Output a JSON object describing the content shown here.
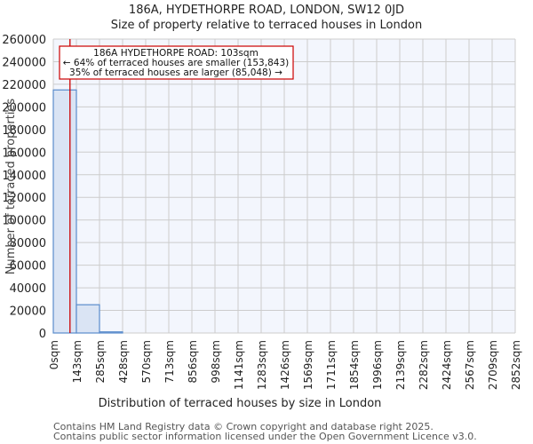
{
  "header": {
    "title": "186A, HYDETHORPE ROAD, LONDON, SW12 0JD",
    "subtitle": "Size of property relative to terraced houses in London"
  },
  "annotation": {
    "line1": "186A HYDETHORPE ROAD: 103sqm",
    "line2": "← 64% of terraced houses are smaller (153,843)",
    "line3": "35% of terraced houses are larger (85,048) →"
  },
  "footer": {
    "line1": "Contains HM Land Registry data © Crown copyright and database right 2025.",
    "line2": "Contains public sector information licensed under the Open Government Licence v3.0."
  },
  "colors": {
    "bar_fill": "#dae4f4",
    "bar_edge": "#5a8ccc",
    "marker": "#cc0000",
    "grid": "#cccccc",
    "plot_bg": "#f3f6fd"
  },
  "chart_data": {
    "type": "bar",
    "title": "186A, HYDETHORPE ROAD, LONDON, SW12 0JD",
    "subtitle": "Size of property relative to terraced houses in London",
    "xlabel": "Distribution of terraced houses by size in London",
    "ylabel": "Number of terraced properties",
    "categories": [
      "0sqm",
      "143sqm",
      "285sqm",
      "428sqm",
      "570sqm",
      "713sqm",
      "856sqm",
      "998sqm",
      "1141sqm",
      "1283sqm",
      "1426sqm",
      "1569sqm",
      "1711sqm",
      "1854sqm",
      "1996sqm",
      "2139sqm",
      "2282sqm",
      "2424sqm",
      "2567sqm",
      "2709sqm",
      "2852sqm"
    ],
    "values": [
      215000,
      25000,
      1000,
      0,
      0,
      0,
      0,
      0,
      0,
      0,
      0,
      0,
      0,
      0,
      0,
      0,
      0,
      0,
      0,
      0
    ],
    "yticks": [
      0,
      20000,
      40000,
      60000,
      80000,
      100000,
      120000,
      140000,
      160000,
      180000,
      200000,
      220000,
      240000,
      260000
    ],
    "ylim": [
      0,
      260000
    ],
    "grid": true,
    "marker_value_sqm": 103,
    "marker_label": "186A HYDETHORPE ROAD: 103sqm"
  }
}
